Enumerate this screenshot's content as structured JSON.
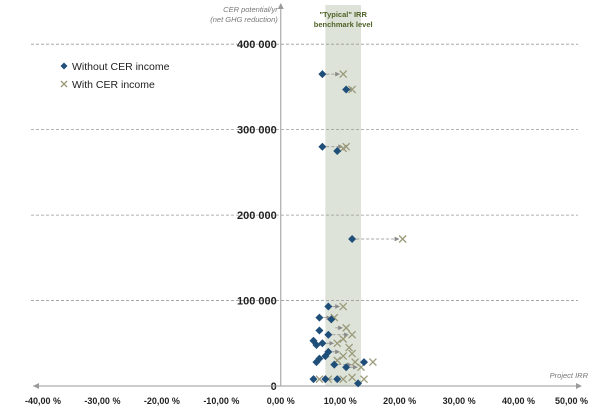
{
  "chart_data": {
    "type": "scatter",
    "title": "",
    "xlabel": "Project IRR",
    "ylabel": "CER potential/yr (net GHG reduction)",
    "ylabel_lines": [
      "CER potential/yr",
      "(net GHG reduction)"
    ],
    "x_tick_labels": [
      "-40,00 %",
      "-30,00 %",
      "-20,00 %",
      "-10,00 %",
      "0,00 %",
      "10,00 %",
      "20,00 %",
      "30,00 %",
      "40,00 %",
      "50,00 %"
    ],
    "x_ticks": [
      -0.4,
      -0.3,
      -0.2,
      -0.1,
      0.0,
      0.1,
      0.2,
      0.3,
      0.4,
      0.5
    ],
    "y_tick_labels": [
      "0",
      "100 000",
      "200 000",
      "300 000",
      "400 000"
    ],
    "y_ticks": [
      0,
      100000,
      200000,
      300000,
      400000
    ],
    "xlim": [
      -0.4,
      0.5
    ],
    "ylim": [
      0,
      440000
    ],
    "grid": "horizontal dashed",
    "legend_position": "top-left",
    "band": {
      "x_range": [
        0.075,
        0.135
      ],
      "label_lines": [
        "\"Typical\" IRR",
        "benchmark level"
      ],
      "color": "#dde3d8"
    },
    "series": [
      {
        "name": "Without CER income",
        "marker": "diamond",
        "color": "#1f4e79",
        "points": [
          [
            0.07,
            365000
          ],
          [
            0.11,
            347000
          ],
          [
            0.07,
            280000
          ],
          [
            0.095,
            275000
          ],
          [
            0.12,
            172000
          ],
          [
            0.08,
            93000
          ],
          [
            0.065,
            80000
          ],
          [
            0.085,
            78000
          ],
          [
            0.065,
            65000
          ],
          [
            0.08,
            60000
          ],
          [
            0.055,
            53000
          ],
          [
            0.07,
            50000
          ],
          [
            0.06,
            48000
          ],
          [
            0.08,
            40000
          ],
          [
            0.075,
            35000
          ],
          [
            0.065,
            32000
          ],
          [
            0.06,
            28000
          ],
          [
            0.09,
            25000
          ],
          [
            0.11,
            22000
          ],
          [
            0.14,
            28000
          ],
          [
            0.055,
            8000
          ],
          [
            0.075,
            8000
          ],
          [
            0.095,
            8000
          ],
          [
            0.13,
            3000
          ]
        ]
      },
      {
        "name": "With CER income",
        "marker": "x",
        "color": "#9a9a7a",
        "points": [
          [
            0.105,
            365000
          ],
          [
            0.12,
            347000
          ],
          [
            0.11,
            280000
          ],
          [
            0.105,
            278000
          ],
          [
            0.205,
            172000
          ],
          [
            0.105,
            93000
          ],
          [
            0.09,
            80000
          ],
          [
            0.11,
            68000
          ],
          [
            0.12,
            60000
          ],
          [
            0.105,
            55000
          ],
          [
            0.095,
            50000
          ],
          [
            0.115,
            45000
          ],
          [
            0.12,
            38000
          ],
          [
            0.105,
            35000
          ],
          [
            0.095,
            30000
          ],
          [
            0.125,
            28000
          ],
          [
            0.155,
            28000
          ],
          [
            0.135,
            22000
          ],
          [
            0.065,
            8000
          ],
          [
            0.08,
            8000
          ],
          [
            0.105,
            8000
          ],
          [
            0.12,
            10000
          ],
          [
            0.14,
            8000
          ]
        ]
      }
    ],
    "arrows": [
      [
        0.07,
        365000,
        0.105,
        365000
      ],
      [
        0.11,
        347000,
        0.12,
        347000
      ],
      [
        0.07,
        280000,
        0.11,
        280000
      ],
      [
        0.12,
        172000,
        0.205,
        172000
      ],
      [
        0.08,
        93000,
        0.105,
        93000
      ],
      [
        0.065,
        80000,
        0.09,
        80000
      ],
      [
        0.085,
        68000,
        0.11,
        68000
      ],
      [
        0.08,
        60000,
        0.12,
        60000
      ],
      [
        0.07,
        50000,
        0.095,
        50000
      ],
      [
        0.08,
        40000,
        0.105,
        40000
      ],
      [
        0.09,
        25000,
        0.125,
        25000
      ],
      [
        0.11,
        22000,
        0.135,
        22000
      ],
      [
        0.075,
        8000,
        0.105,
        8000
      ]
    ]
  },
  "colors": {
    "axis": "#9a9a9a",
    "grid": "#9a9a9a",
    "band": "#dde3d8",
    "band_label": "#4f6228",
    "text": "#222222",
    "axis_title": "#777777"
  }
}
